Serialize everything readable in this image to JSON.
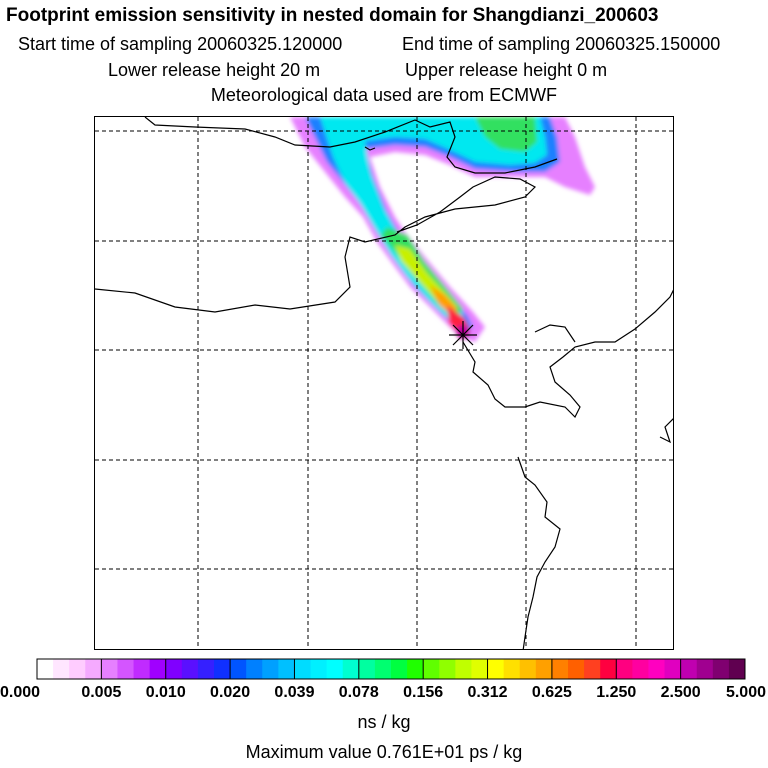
{
  "title": "Footprint emission sensitivity in nested domain for Shangdianzi_200603",
  "start_time_label": "Start time of sampling 20060325.120000",
  "end_time_label": "End time of sampling 20060325.150000",
  "lower_release_label": "Lower release height   20 m",
  "upper_release_label": "Upper release height    0 m",
  "met_label": "Meteorological data used are from ECMWF",
  "colorbar": {
    "ticks": [
      "0.000",
      "0.005",
      "0.010",
      "0.020",
      "0.039",
      "0.078",
      "0.156",
      "0.312",
      "0.625",
      "1.250",
      "2.500",
      "5.000"
    ],
    "colors": [
      "#ffffff",
      "#ffe6ff",
      "#ffccff",
      "#f5aaff",
      "#e680ff",
      "#d455ff",
      "#c02bff",
      "#a000ff",
      "#8000ff",
      "#5a10ff",
      "#3520ff",
      "#1030ff",
      "#0055ff",
      "#0080ff",
      "#00a0ff",
      "#00c0ff",
      "#00dcff",
      "#00f0ff",
      "#00ffff",
      "#00ffd0",
      "#00ffa0",
      "#00ff70",
      "#00ff40",
      "#20ff00",
      "#60ff00",
      "#90ff00",
      "#c0ff00",
      "#e0ff00",
      "#ffff00",
      "#ffe000",
      "#ffc000",
      "#ffa000",
      "#ff8000",
      "#ff6000",
      "#ff4020",
      "#ff0040",
      "#ff0080",
      "#ff00a0",
      "#ff00c0",
      "#e000c0",
      "#c000b0",
      "#a00090",
      "#800070",
      "#600050"
    ],
    "units": "ns / kg"
  },
  "max_value_label": "Maximum value  0.761E+01 ps / kg",
  "map": {
    "receptor_icon": "receptor-star-icon",
    "accent_colors": {
      "land": "#000000",
      "grid": "#000000"
    }
  }
}
